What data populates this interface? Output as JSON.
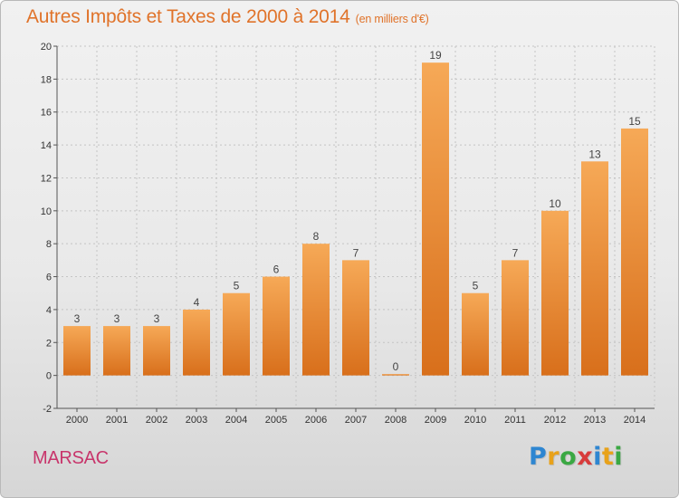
{
  "title": "Autres Impôts et Taxes de 2000 à 2014",
  "subtitle": "(en milliers d'€)",
  "commune": "MARSAC",
  "logo": {
    "letters": [
      "P",
      "r",
      "o",
      "x",
      "i",
      "t",
      "i"
    ],
    "colors": [
      "#2e86d1",
      "#e8a21a",
      "#3aa843",
      "#d83b3b",
      "#2e86d1",
      "#e8a21a",
      "#3aa843"
    ]
  },
  "colors": {
    "bar_light": "#f6a957",
    "bar_dark": "#d86f1b",
    "title": "#e0732a",
    "commune": "#c8356b"
  },
  "chart_data": {
    "type": "bar",
    "categories": [
      "2000",
      "2001",
      "2002",
      "2003",
      "2004",
      "2005",
      "2006",
      "2007",
      "2008",
      "2009",
      "2010",
      "2011",
      "2012",
      "2013",
      "2014"
    ],
    "values": [
      3,
      3,
      3,
      4,
      5,
      6,
      8,
      7,
      0,
      19,
      5,
      7,
      10,
      13,
      15
    ],
    "ylim": [
      -2,
      20
    ],
    "yticks": [
      -2,
      0,
      2,
      4,
      6,
      8,
      10,
      12,
      14,
      16,
      18,
      20
    ],
    "grid": true,
    "title": "Autres Impôts et Taxes de 2000 à 2014",
    "ylabel": "",
    "xlabel": ""
  }
}
